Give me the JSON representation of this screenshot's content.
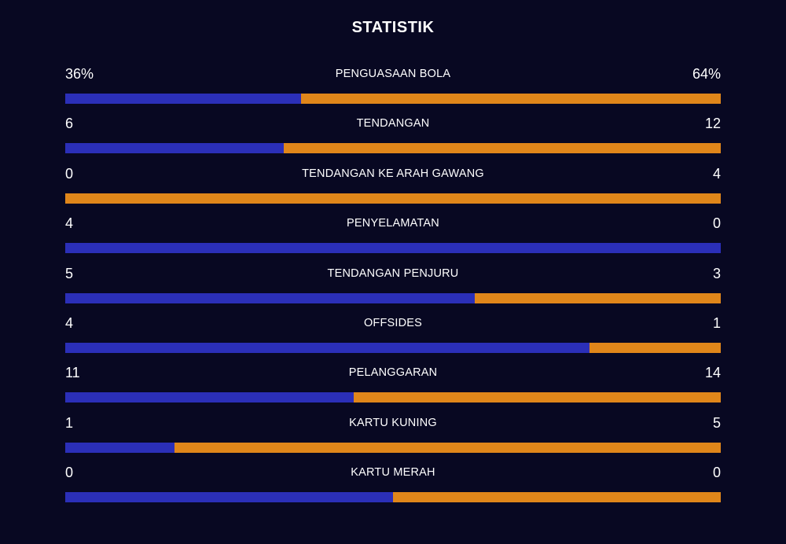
{
  "title": "STATISTIK",
  "colors": {
    "background": "#080822",
    "home": "#2b2fb8",
    "away": "#e0861a"
  },
  "stats": [
    {
      "label": "PENGUASAAN BOLA",
      "left": "36%",
      "right": "64%",
      "home_share": 0.36
    },
    {
      "label": "TENDANGAN",
      "left": "6",
      "right": "12",
      "home_share": 0.3333
    },
    {
      "label": "TENDANGAN KE ARAH GAWANG",
      "left": "0",
      "right": "4",
      "home_share": 0.0
    },
    {
      "label": "PENYELAMATAN",
      "left": "4",
      "right": "0",
      "home_share": 1.0
    },
    {
      "label": "TENDANGAN PENJURU",
      "left": "5",
      "right": "3",
      "home_share": 0.625
    },
    {
      "label": "OFFSIDES",
      "left": "4",
      "right": "1",
      "home_share": 0.8
    },
    {
      "label": "PELANGGARAN",
      "left": "11",
      "right": "14",
      "home_share": 0.44
    },
    {
      "label": "KARTU KUNING",
      "left": "1",
      "right": "5",
      "home_share": 0.1667
    },
    {
      "label": "KARTU MERAH",
      "left": "0",
      "right": "0",
      "home_share": 0.5
    }
  ]
}
